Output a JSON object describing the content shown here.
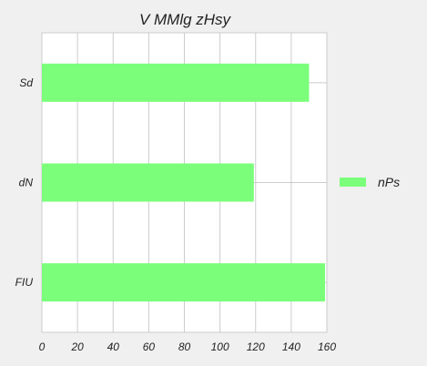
{
  "chart_data": {
    "type": "bar",
    "orientation": "horizontal",
    "title": "V MMlg zHsy",
    "categories": [
      "Sd",
      "dN",
      "FIU"
    ],
    "series": [
      {
        "name": "nPs",
        "values": [
          150,
          119,
          159
        ],
        "color": "#7bff7b"
      }
    ],
    "xlim": [
      0,
      160
    ],
    "xticks": [
      0,
      20,
      40,
      60,
      80,
      100,
      120,
      140,
      160
    ],
    "xlabel": "",
    "ylabel": "",
    "grid": true,
    "legend_position": "right",
    "colors": {
      "background": "#f0f0f0",
      "plot_background": "#ffffff",
      "grid": "#cccccc"
    }
  }
}
